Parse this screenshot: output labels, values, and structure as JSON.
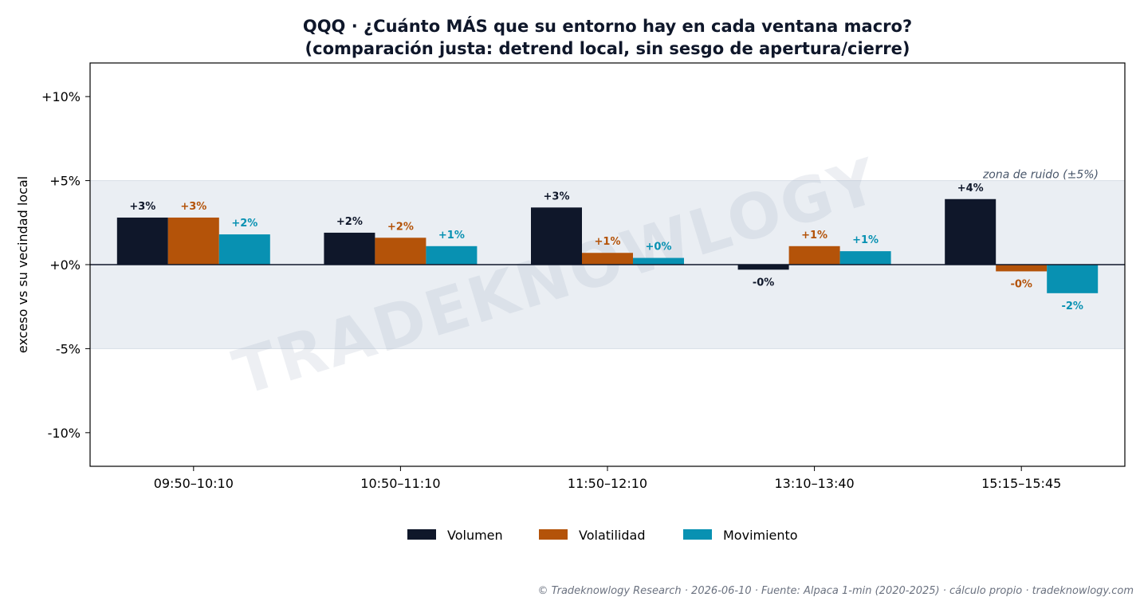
{
  "chart_data": {
    "type": "bar",
    "title_line1": "QQQ · ¿Cuánto MÁS que su entorno hay en cada ventana macro?",
    "title_line2": "(comparación justa: detrend local, sin sesgo de apertura/cierre)",
    "ylabel": "exceso vs su vecindad local",
    "categories": [
      "09:50–10:10",
      "10:50–11:10",
      "11:50–12:10",
      "13:10–13:40",
      "15:15–15:45"
    ],
    "series": [
      {
        "name": "Volumen",
        "color": "#0f172a",
        "values": [
          2.8,
          1.9,
          3.4,
          -0.3,
          3.9
        ],
        "labels": [
          "+3%",
          "+2%",
          "+3%",
          "-0%",
          "+4%"
        ]
      },
      {
        "name": "Volatilidad",
        "color": "#b45309",
        "values": [
          2.8,
          1.6,
          0.7,
          1.1,
          -0.4
        ],
        "labels": [
          "+3%",
          "+2%",
          "+1%",
          "+1%",
          "-0%"
        ]
      },
      {
        "name": "Movimiento",
        "color": "#0891b2",
        "values": [
          1.8,
          1.1,
          0.4,
          0.8,
          -1.7
        ],
        "labels": [
          "+2%",
          "+1%",
          "+0%",
          "+1%",
          "-2%"
        ]
      }
    ],
    "ylim": [
      -12,
      12
    ],
    "yticks": [
      10,
      5,
      0,
      -5,
      -10
    ],
    "ytick_labels": [
      "+10%",
      "+5%",
      "+0%",
      "-5%",
      "-10%"
    ],
    "noise_band": [
      -5,
      5
    ],
    "noise_label": "zona de ruido (±5%)",
    "legend_position": "bottom-center",
    "grid": false
  },
  "watermark": "TRADEKNOWLOGY",
  "footer": "© Tradeknowlogy Research   ·   2026-06-10   ·   Fuente: Alpaca 1-min (2020-2025) · cálculo propio   ·   tradeknowlogy.com"
}
